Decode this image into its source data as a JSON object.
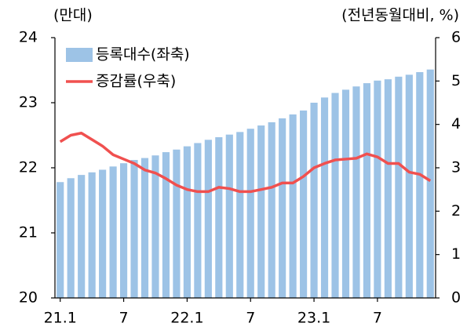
{
  "chart_data": {
    "type": "bar_line",
    "y_unit": "(만대)",
    "y2_unit": "(전년동월대비, %)",
    "categories": [
      "21.1",
      null,
      null,
      null,
      null,
      null,
      "7",
      null,
      null,
      null,
      null,
      null,
      "22.1",
      null,
      null,
      null,
      null,
      null,
      "7",
      null,
      null,
      null,
      null,
      null,
      "23.1",
      null,
      null,
      null,
      null,
      null,
      "7",
      null,
      null,
      null,
      null,
      null
    ],
    "series": [
      {
        "name": "등록대수(좌축)",
        "color": "#9dc3e6",
        "type": "bar",
        "values": [
          21.78,
          21.84,
          21.89,
          21.93,
          21.97,
          22.02,
          22.07,
          22.12,
          22.15,
          22.19,
          22.24,
          22.28,
          22.33,
          22.38,
          22.43,
          22.47,
          22.51,
          22.55,
          22.6,
          22.65,
          22.7,
          22.76,
          22.82,
          22.88,
          23.0,
          23.08,
          23.15,
          23.2,
          23.25,
          23.3,
          23.34,
          23.36,
          23.4,
          23.43,
          23.47,
          23.51
        ]
      },
      {
        "name": "증감률(우축)",
        "color": "#f0504f",
        "type": "line",
        "axis": "y2",
        "values": [
          3.6,
          3.75,
          3.8,
          3.65,
          3.5,
          3.3,
          3.2,
          3.1,
          2.95,
          2.88,
          2.75,
          2.6,
          2.5,
          2.45,
          2.45,
          2.55,
          2.52,
          2.45,
          2.45,
          2.5,
          2.55,
          2.65,
          2.65,
          2.8,
          3.0,
          3.1,
          3.18,
          3.2,
          3.22,
          3.32,
          3.25,
          3.1,
          3.1,
          2.9,
          2.85,
          2.7
        ]
      }
    ],
    "ylim": [
      20,
      24
    ],
    "yticks": [
      20,
      21,
      22,
      23,
      24
    ],
    "y2lim": [
      0,
      6
    ],
    "y2ticks": [
      0,
      1,
      2,
      3,
      4,
      5,
      6
    ],
    "legend": "top-left"
  }
}
